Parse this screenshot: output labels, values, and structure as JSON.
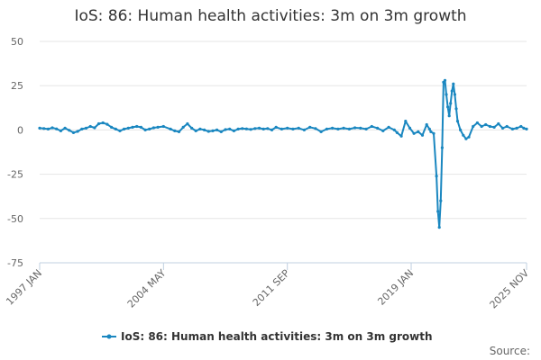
{
  "chart_data": {
    "type": "line",
    "title": "IoS: 86: Human health activities: 3m on 3m growth",
    "xlabel": "",
    "ylabel": "",
    "ylim": [
      -75,
      50
    ],
    "y_ticks": [
      50,
      25,
      0,
      -25,
      -50,
      -75
    ],
    "x_range": [
      "1997-01",
      "2025-11"
    ],
    "x_ticks": [
      "1997 JAN",
      "2004 MAY",
      "2011 SEP",
      "2019 JAN",
      "2025 NOV"
    ],
    "grid": true,
    "legend_position": "bottom",
    "series": [
      {
        "name": "IoS: 86: Human health activities: 3m on 3m growth",
        "color": "#1a87c0",
        "points": [
          [
            "1997-01",
            1.0
          ],
          [
            "1997-04",
            0.8
          ],
          [
            "1997-07",
            0.5
          ],
          [
            "1997-10",
            1.2
          ],
          [
            "1998-01",
            0.6
          ],
          [
            "1998-04",
            -0.5
          ],
          [
            "1998-07",
            1.0
          ],
          [
            "1998-10",
            -0.2
          ],
          [
            "1999-01",
            -1.5
          ],
          [
            "1999-04",
            -0.8
          ],
          [
            "1999-07",
            0.5
          ],
          [
            "1999-10",
            1.0
          ],
          [
            "2000-01",
            2.0
          ],
          [
            "2000-04",
            1.2
          ],
          [
            "2000-07",
            3.5
          ],
          [
            "2000-10",
            4.0
          ],
          [
            "2001-01",
            3.2
          ],
          [
            "2001-04",
            1.5
          ],
          [
            "2001-07",
            0.5
          ],
          [
            "2001-10",
            -0.5
          ],
          [
            "2002-01",
            0.5
          ],
          [
            "2002-04",
            1.0
          ],
          [
            "2002-07",
            1.5
          ],
          [
            "2002-10",
            2.0
          ],
          [
            "2003-01",
            1.5
          ],
          [
            "2003-04",
            0.0
          ],
          [
            "2003-07",
            0.5
          ],
          [
            "2003-10",
            1.2
          ],
          [
            "2004-01",
            1.5
          ],
          [
            "2004-05",
            2.0
          ],
          [
            "2004-10",
            0.5
          ],
          [
            "2005-01",
            -0.5
          ],
          [
            "2005-04",
            -1.0
          ],
          [
            "2005-07",
            1.5
          ],
          [
            "2005-10",
            3.5
          ],
          [
            "2006-01",
            1.0
          ],
          [
            "2006-04",
            -0.5
          ],
          [
            "2006-07",
            0.5
          ],
          [
            "2006-10",
            0.0
          ],
          [
            "2007-01",
            -0.8
          ],
          [
            "2007-04",
            -0.5
          ],
          [
            "2007-07",
            0.0
          ],
          [
            "2007-10",
            -1.0
          ],
          [
            "2008-01",
            0.2
          ],
          [
            "2008-04",
            0.5
          ],
          [
            "2008-07",
            -0.5
          ],
          [
            "2008-10",
            0.5
          ],
          [
            "2009-01",
            0.8
          ],
          [
            "2009-04",
            0.6
          ],
          [
            "2009-07",
            0.3
          ],
          [
            "2009-10",
            0.8
          ],
          [
            "2010-01",
            1.0
          ],
          [
            "2010-04",
            0.5
          ],
          [
            "2010-07",
            0.8
          ],
          [
            "2010-10",
            0.0
          ],
          [
            "2011-01",
            1.5
          ],
          [
            "2011-05",
            0.5
          ],
          [
            "2011-09",
            1.0
          ],
          [
            "2012-01",
            0.5
          ],
          [
            "2012-05",
            1.0
          ],
          [
            "2012-09",
            0.0
          ],
          [
            "2013-01",
            1.5
          ],
          [
            "2013-05",
            0.8
          ],
          [
            "2013-09",
            -1.0
          ],
          [
            "2014-01",
            0.5
          ],
          [
            "2014-05",
            1.0
          ],
          [
            "2014-09",
            0.5
          ],
          [
            "2015-01",
            1.0
          ],
          [
            "2015-05",
            0.5
          ],
          [
            "2015-09",
            1.2
          ],
          [
            "2016-01",
            1.0
          ],
          [
            "2016-05",
            0.5
          ],
          [
            "2016-09",
            2.0
          ],
          [
            "2017-01",
            1.0
          ],
          [
            "2017-05",
            -0.5
          ],
          [
            "2017-09",
            1.5
          ],
          [
            "2018-01",
            0.0
          ],
          [
            "2018-03",
            -1.5
          ],
          [
            "2018-06",
            -3.5
          ],
          [
            "2018-09",
            5.0
          ],
          [
            "2018-12",
            1.0
          ],
          [
            "2019-03",
            -2.0
          ],
          [
            "2019-06",
            -1.0
          ],
          [
            "2019-09",
            -3.0
          ],
          [
            "2019-12",
            3.0
          ],
          [
            "2020-02",
            0.5
          ],
          [
            "2020-03",
            -1.0
          ],
          [
            "2020-05",
            -2.0
          ],
          [
            "2020-07",
            -26.0
          ],
          [
            "2020-08",
            -46.0
          ],
          [
            "2020-09",
            -55.0
          ],
          [
            "2020-10",
            -40.0
          ],
          [
            "2020-11",
            -10.0
          ],
          [
            "2020-12",
            27.0
          ],
          [
            "2021-01",
            28.0
          ],
          [
            "2021-02",
            20.0
          ],
          [
            "2021-03",
            13.0
          ],
          [
            "2021-04",
            8.0
          ],
          [
            "2021-05",
            15.0
          ],
          [
            "2021-06",
            22.0
          ],
          [
            "2021-07",
            26.0
          ],
          [
            "2021-08",
            20.0
          ],
          [
            "2021-09",
            12.0
          ],
          [
            "2021-10",
            5.0
          ],
          [
            "2021-12",
            0.0
          ],
          [
            "2022-02",
            -3.0
          ],
          [
            "2022-04",
            -5.0
          ],
          [
            "2022-06",
            -4.0
          ],
          [
            "2022-09",
            2.0
          ],
          [
            "2022-12",
            4.0
          ],
          [
            "2023-03",
            2.0
          ],
          [
            "2023-06",
            3.0
          ],
          [
            "2023-09",
            2.0
          ],
          [
            "2023-12",
            1.5
          ],
          [
            "2024-03",
            3.5
          ],
          [
            "2024-06",
            1.0
          ],
          [
            "2024-09",
            2.0
          ],
          [
            "2025-01",
            0.5
          ],
          [
            "2025-04",
            1.0
          ],
          [
            "2025-07",
            2.0
          ],
          [
            "2025-09",
            1.0
          ],
          [
            "2025-11",
            0.5
          ]
        ]
      }
    ],
    "source_label": "Source:"
  }
}
